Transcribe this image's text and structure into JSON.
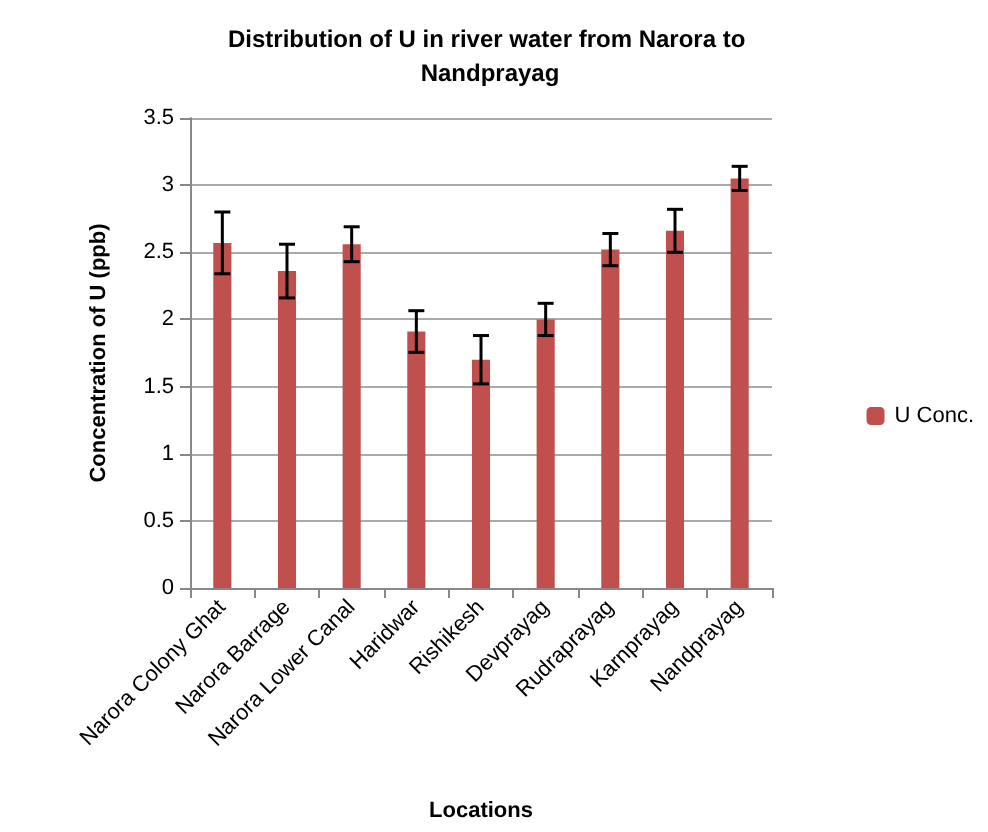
{
  "chart_data": {
    "type": "bar",
    "title": "Distribution of U in river water from Narora to Nandprayag",
    "xlabel": "Locations",
    "ylabel": "Concentration of U (ppb)",
    "categories": [
      "Narora Colony Ghat",
      "Narora Barrage",
      "Narora Lower Canal",
      "Haridwar",
      "Rishikesh",
      "Devprayag",
      "Rudraprayag",
      "Karnprayag",
      "Nandprayag"
    ],
    "series": [
      {
        "name": "U Conc.",
        "color": "#c0504d",
        "values": [
          2.57,
          2.36,
          2.56,
          1.91,
          1.7,
          2.0,
          2.52,
          2.66,
          3.05
        ],
        "errors": [
          0.23,
          0.2,
          0.13,
          0.155,
          0.18,
          0.12,
          0.12,
          0.16,
          0.09
        ]
      }
    ],
    "ylim": [
      0,
      3.5
    ],
    "yticks": [
      0,
      0.5,
      1,
      1.5,
      2,
      2.5,
      3,
      3.5
    ],
    "grid": "y",
    "legend": "right"
  }
}
